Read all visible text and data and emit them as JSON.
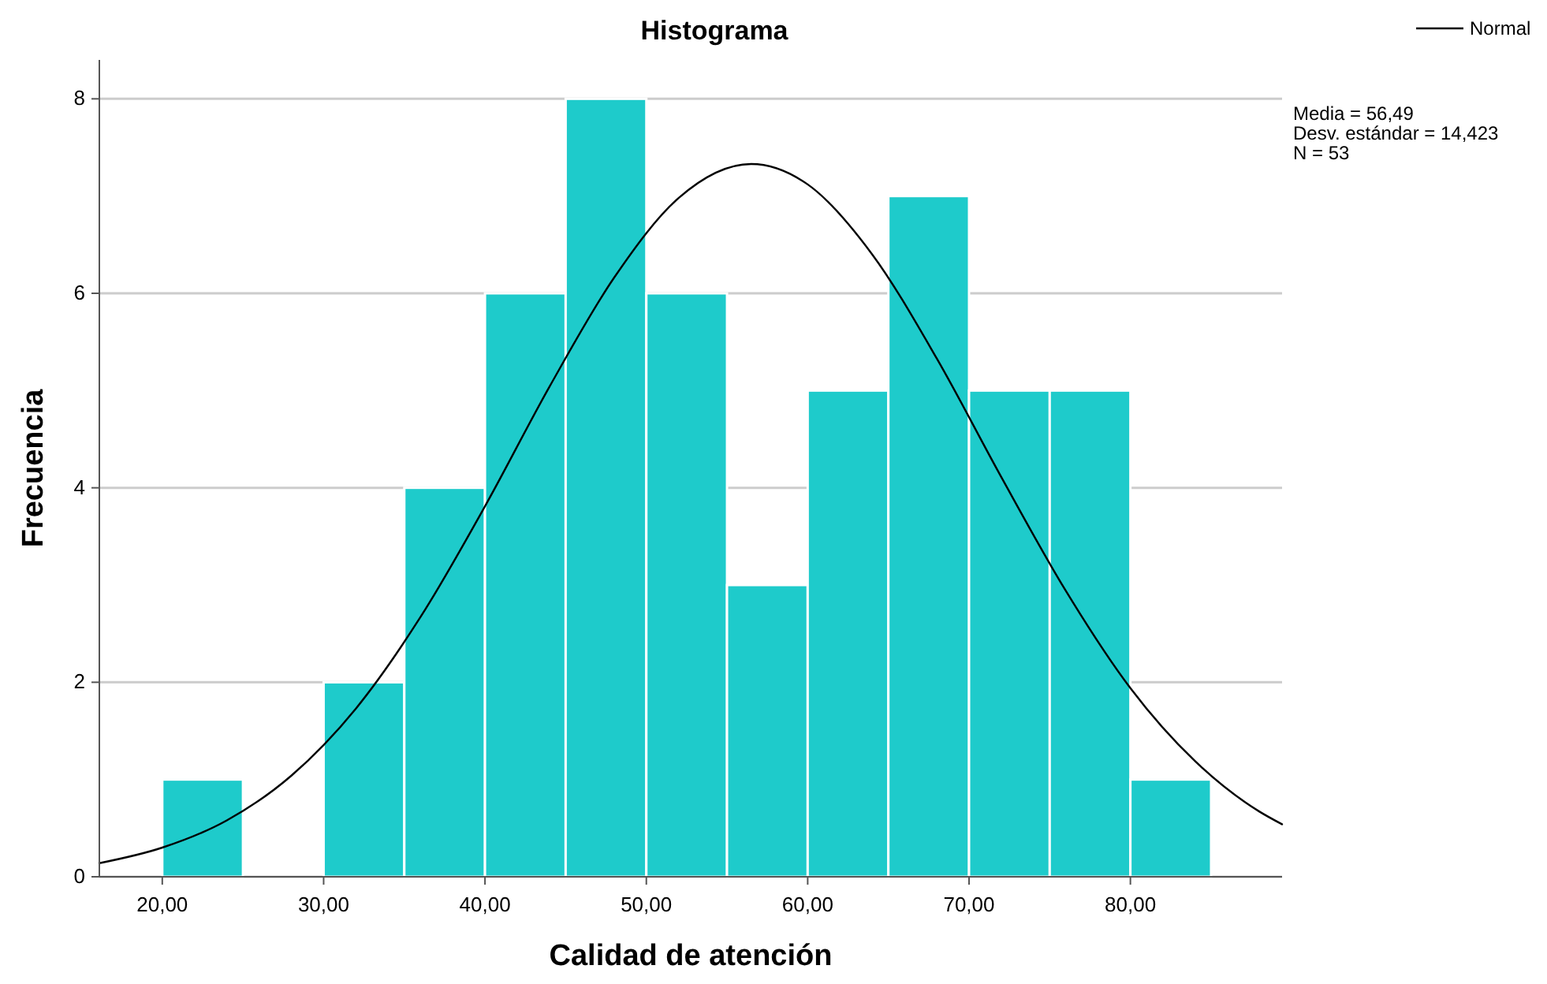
{
  "chart_data": {
    "type": "histogram",
    "title": "Histograma",
    "xlabel": "Calidad de atención",
    "ylabel": "Frecuencia",
    "bins": [
      20,
      25,
      30,
      35,
      40,
      45,
      50,
      55,
      60,
      65,
      70,
      75,
      80,
      85
    ],
    "values": [
      1,
      0,
      2,
      4,
      6,
      8,
      6,
      3,
      5,
      7,
      5,
      5,
      1
    ],
    "color": "#1ecbcb",
    "series": [
      {
        "name": "Normal",
        "type": "line",
        "color": "#000000",
        "x": [
          16.1,
          20,
          24,
          28,
          32,
          36,
          40,
          44,
          48,
          52,
          56.5,
          60,
          64,
          68,
          72,
          76,
          80,
          84,
          88,
          89.4
        ],
        "values": [
          0.14,
          0.3,
          0.58,
          1.04,
          1.73,
          2.67,
          3.81,
          5.04,
          6.16,
          6.98,
          7.33,
          7.12,
          6.4,
          5.33,
          4.11,
          2.94,
          1.94,
          1.19,
          0.67,
          0.54
        ]
      }
    ],
    "xlim": [
      16.1,
      89.4
    ],
    "xticks": [
      {
        "value": 20,
        "label": "20,00"
      },
      {
        "value": 30,
        "label": "30,00"
      },
      {
        "value": 40,
        "label": "40,00"
      },
      {
        "value": 50,
        "label": "50,00"
      },
      {
        "value": 60,
        "label": "60,00"
      },
      {
        "value": 70,
        "label": "70,00"
      },
      {
        "value": 80,
        "label": "80,00"
      }
    ],
    "ylim": [
      0,
      8.4
    ],
    "yticks": [
      0,
      2,
      4,
      6,
      8
    ],
    "grid": "y",
    "legend": "top right",
    "annotations": [
      "Media = 56,49",
      "Desv. estándar = 14,423",
      "N = 53"
    ]
  }
}
